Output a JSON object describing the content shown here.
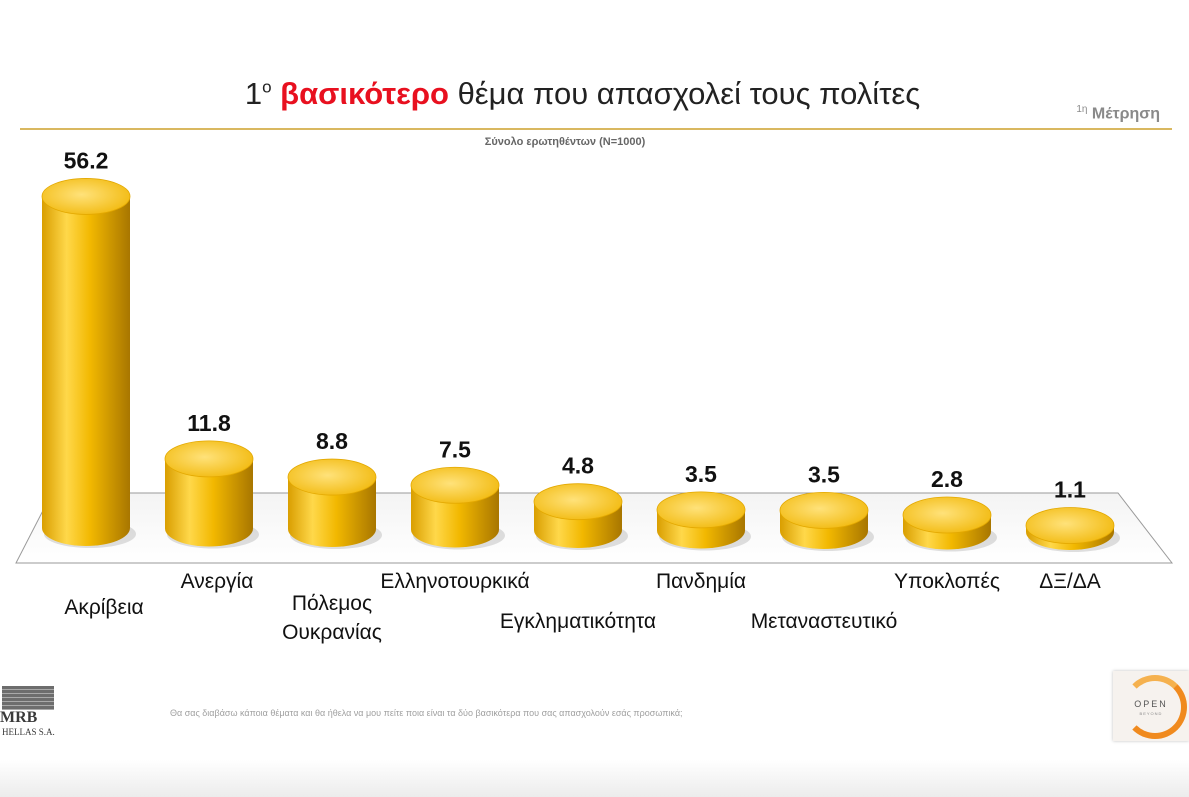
{
  "header": {
    "title_sup": "ο",
    "title_number": "1",
    "title_highlight": "βασικότερο",
    "title_rest": " θέμα που απασχολεί τους πολίτες",
    "measure_sup": "1η",
    "measure_label": "Μέτρηση",
    "subtitle": "Σύνολο ερωτηθέντων (N=1000)"
  },
  "footnote": "Θα σας διαβάσω κάποια θέματα και θα ήθελα να μου πείτε ποια είναι τα δύο βασικότερα που σας απασχολούν  εσάς προσωπικά;",
  "logos": {
    "mrb": "MRB",
    "mrb_sub": "HELLAS S.A.",
    "open": "OPEN",
    "open_sub": "BEYOND"
  },
  "colors": {
    "bar_light": "#ffd84a",
    "bar_mid": "#f2b800",
    "bar_dark": "#b37f00",
    "title_highlight": "#e8101f",
    "rule": "#d9b860"
  },
  "chart_data": {
    "type": "bar",
    "style": "3d-cylinder",
    "categories": [
      [
        "Ακρίβεια"
      ],
      [
        "Ανεργία"
      ],
      [
        "Πόλεμος",
        "Ουκρανίας"
      ],
      [
        "Ελληνοτουρκικά"
      ],
      [
        "Εγκληματικότητα"
      ],
      [
        "Πανδημία"
      ],
      [
        "Μεταναστευτικό"
      ],
      [
        "Υποκλοπές"
      ],
      [
        "ΔΞ/ΔΑ"
      ]
    ],
    "values": [
      56.2,
      11.8,
      8.8,
      7.5,
      4.8,
      3.5,
      3.5,
      2.8,
      1.1
    ],
    "value_labels": [
      "56.2",
      "11.8",
      "8.8",
      "7.5",
      "4.8",
      "3.5",
      "3.5",
      "2.8",
      "1.1"
    ],
    "ylim": [
      0,
      60
    ],
    "grid": false,
    "legend": "none"
  }
}
